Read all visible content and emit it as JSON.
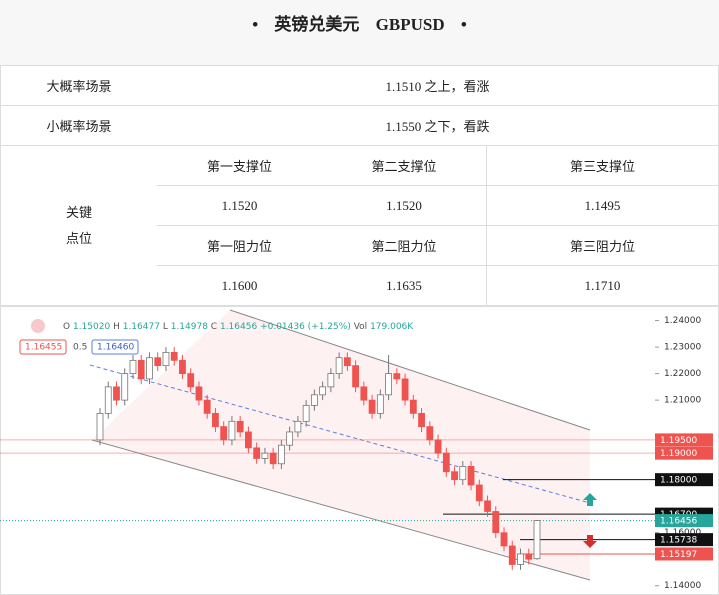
{
  "header": {
    "title": "英镑兑美元",
    "symbol": "GBPUSD"
  },
  "scenarios": [
    {
      "label": "大概率场景",
      "value": "1.1510 之上，看涨"
    },
    {
      "label": "小概率场景",
      "value": "1.1550 之下，看跌"
    }
  ],
  "key_levels": {
    "label": [
      "关键",
      "点位"
    ],
    "supports": [
      {
        "name": "第一支撑位",
        "value": "1.1520"
      },
      {
        "name": "第二支撑位",
        "value": "1.1520"
      },
      {
        "name": "第三支撑位",
        "value": "1.1495"
      }
    ],
    "resistances": [
      {
        "name": "第一阻力位",
        "value": "1.1600"
      },
      {
        "name": "第二阻力位",
        "value": "1.1635"
      },
      {
        "name": "第三阻力位",
        "value": "1.1710"
      }
    ]
  },
  "chart_data": {
    "type": "candlestick",
    "legend": {
      "ohlc": [
        {
          "label": "O",
          "value": "1.15020"
        },
        {
          "label": "H",
          "value": "1.16477"
        },
        {
          "label": "L",
          "value": "1.14978"
        },
        {
          "label": "C",
          "value": "1.16456"
        }
      ],
      "change": "+0.01436 (+1.25%)",
      "volume": {
        "label": "Vol",
        "value": "179.006K"
      },
      "sell": "1.16455",
      "spread": "0.5",
      "buy": "1.16460"
    },
    "up_color": "#26a69a",
    "down_color": "#ef5350",
    "ylim": [
      1.1365,
      1.2455
    ],
    "yticks": [
      {
        "value": 1.24,
        "label": "1.24000"
      },
      {
        "value": 1.23,
        "label": "1.23000"
      },
      {
        "value": 1.22,
        "label": "1.22000"
      },
      {
        "value": 1.21,
        "label": "1.21000"
      },
      {
        "value": 1.16,
        "label": "1.16000"
      },
      {
        "value": 1.14,
        "label": "1.14000"
      }
    ],
    "price_tags": [
      {
        "value": 1.195,
        "label": "1.19500",
        "color": "#ef5350"
      },
      {
        "value": 1.19,
        "label": "1.19000",
        "color": "#ef5350"
      },
      {
        "value": 1.18,
        "label": "1.18000",
        "color": "#111111"
      },
      {
        "value": 1.167,
        "label": "1.16700",
        "color": "#111111"
      },
      {
        "value": 1.16456,
        "label": "1.16456",
        "color": "#26a69a"
      },
      {
        "value": 1.15738,
        "label": "1.15738",
        "color": "#111111"
      },
      {
        "value": 1.15197,
        "label": "1.15197",
        "color": "#ef5350"
      }
    ],
    "open": [
      1.195,
      1.205,
      1.215,
      1.21,
      1.22,
      1.225,
      1.218,
      1.226,
      1.223,
      1.228,
      1.225,
      1.22,
      1.215,
      1.21,
      1.205,
      1.2,
      1.195,
      1.202,
      1.198,
      1.192,
      1.188,
      1.19,
      1.186,
      1.193,
      1.198,
      1.202,
      1.208,
      1.212,
      1.215,
      1.22,
      1.226,
      1.223,
      1.215,
      1.21,
      1.205,
      1.212,
      1.22,
      1.218,
      1.21,
      1.205,
      1.2,
      1.195,
      1.19,
      1.183,
      1.18,
      1.185,
      1.178,
      1.172,
      1.168,
      1.16,
      1.155,
      1.148,
      1.152,
      1.1502
    ],
    "high": [
      1.207,
      1.217,
      1.217,
      1.222,
      1.227,
      1.227,
      1.228,
      1.228,
      1.23,
      1.23,
      1.227,
      1.222,
      1.217,
      1.212,
      1.207,
      1.202,
      1.204,
      1.204,
      1.2,
      1.194,
      1.192,
      1.192,
      1.195,
      1.2,
      1.204,
      1.21,
      1.214,
      1.217,
      1.222,
      1.228,
      1.228,
      1.225,
      1.217,
      1.212,
      1.214,
      1.227,
      1.222,
      1.22,
      1.212,
      1.207,
      1.202,
      1.197,
      1.192,
      1.185,
      1.187,
      1.187,
      1.18,
      1.174,
      1.17,
      1.162,
      1.157,
      1.154,
      1.154,
      1.16477
    ],
    "low": [
      1.193,
      1.203,
      1.208,
      1.208,
      1.218,
      1.216,
      1.216,
      1.221,
      1.221,
      1.223,
      1.218,
      1.213,
      1.208,
      1.203,
      1.198,
      1.193,
      1.193,
      1.196,
      1.19,
      1.186,
      1.186,
      1.184,
      1.184,
      1.191,
      1.196,
      1.2,
      1.206,
      1.21,
      1.213,
      1.218,
      1.221,
      1.213,
      1.208,
      1.203,
      1.203,
      1.21,
      1.216,
      1.208,
      1.203,
      1.198,
      1.193,
      1.188,
      1.181,
      1.178,
      1.178,
      1.176,
      1.17,
      1.166,
      1.158,
      1.153,
      1.146,
      1.146,
      1.148,
      1.14978
    ],
    "close": [
      1.205,
      1.215,
      1.21,
      1.22,
      1.225,
      1.218,
      1.226,
      1.223,
      1.228,
      1.225,
      1.22,
      1.215,
      1.21,
      1.205,
      1.2,
      1.195,
      1.202,
      1.198,
      1.192,
      1.188,
      1.19,
      1.186,
      1.193,
      1.198,
      1.202,
      1.208,
      1.212,
      1.215,
      1.22,
      1.226,
      1.223,
      1.215,
      1.21,
      1.205,
      1.212,
      1.22,
      1.218,
      1.21,
      1.205,
      1.2,
      1.195,
      1.19,
      1.183,
      1.18,
      1.185,
      1.178,
      1.172,
      1.168,
      1.16,
      1.155,
      1.148,
      1.152,
      1.15,
      1.16456
    ]
  }
}
